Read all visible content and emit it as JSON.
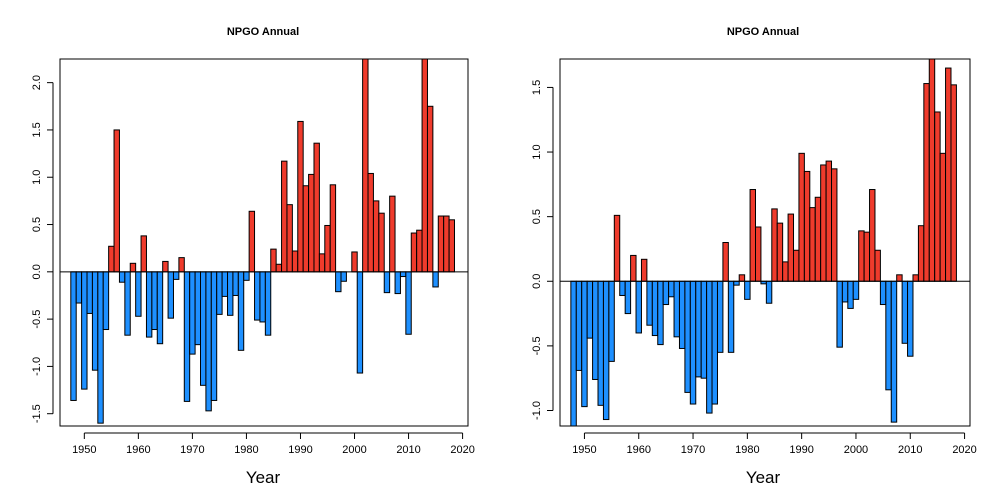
{
  "chart_data": [
    {
      "type": "bar",
      "title": "NPGO Annual",
      "xlabel": "Year",
      "ylabel": "",
      "xlim": [
        1945.5,
        2021
      ],
      "ylim": [
        -1.63,
        2.25
      ],
      "xticks": [
        1950,
        1960,
        1970,
        1980,
        1990,
        2000,
        2010,
        2020
      ],
      "yticks": [
        -1.5,
        -1.0,
        -0.5,
        0.0,
        0.5,
        1.0,
        1.5,
        2.0
      ],
      "ytick_labels": [
        "-1.5",
        "-1.0",
        "-0.5",
        "0.0",
        "0.5",
        "1.0",
        "1.5",
        "2.0"
      ],
      "colors": {
        "positive": "#ef3b2c",
        "negative": "#1e90ff"
      },
      "x": [
        1948,
        1949,
        1950,
        1951,
        1952,
        1953,
        1954,
        1955,
        1956,
        1957,
        1958,
        1959,
        1960,
        1961,
        1962,
        1963,
        1964,
        1965,
        1966,
        1967,
        1968,
        1969,
        1970,
        1971,
        1972,
        1973,
        1974,
        1975,
        1976,
        1977,
        1978,
        1979,
        1980,
        1981,
        1982,
        1983,
        1984,
        1985,
        1986,
        1987,
        1988,
        1989,
        1990,
        1991,
        1992,
        1993,
        1994,
        1995,
        1996,
        1997,
        1998,
        1999,
        2000,
        2001,
        2002,
        2003,
        2004,
        2005,
        2006,
        2007,
        2008,
        2009,
        2010,
        2011,
        2012,
        2013,
        2014,
        2015,
        2016,
        2017,
        2018
      ],
      "values": [
        -1.36,
        -0.33,
        -1.24,
        -0.44,
        -1.04,
        -1.6,
        -0.61,
        0.27,
        1.5,
        -0.11,
        -0.67,
        0.09,
        -0.47,
        0.38,
        -0.69,
        -0.61,
        -0.76,
        0.11,
        -0.49,
        -0.08,
        0.15,
        -1.37,
        -0.87,
        -0.77,
        -1.2,
        -1.47,
        -1.36,
        -0.45,
        -0.26,
        -0.46,
        -0.25,
        -0.83,
        -0.09,
        0.64,
        -0.51,
        -0.53,
        -0.67,
        0.24,
        0.08,
        1.17,
        0.71,
        0.22,
        1.59,
        0.91,
        1.03,
        1.36,
        0.19,
        0.49,
        0.92,
        -0.21,
        -0.1,
        0.0,
        0.21,
        -1.07,
        2.25,
        1.04,
        0.75,
        0.62,
        -0.22,
        0.8,
        -0.23,
        -0.05,
        -0.66,
        0.41,
        0.44,
        2.25,
        1.75,
        -0.16,
        0.59,
        0.59,
        0.55
      ]
    },
    {
      "type": "bar",
      "title": "NPGO Annual",
      "xlabel": "Year",
      "ylabel": "",
      "xlim": [
        1945.5,
        2021
      ],
      "ylim": [
        -1.12,
        1.72
      ],
      "xticks": [
        1950,
        1960,
        1970,
        1980,
        1990,
        2000,
        2010,
        2020
      ],
      "yticks": [
        -1.0,
        -0.5,
        0.0,
        0.5,
        1.0,
        1.5
      ],
      "ytick_labels": [
        "-1.0",
        "-0.5",
        "0.0",
        "0.5",
        "1.0",
        "1.5"
      ],
      "colors": {
        "positive": "#ef3b2c",
        "negative": "#1e90ff"
      },
      "x": [
        1948,
        1949,
        1950,
        1951,
        1952,
        1953,
        1954,
        1955,
        1956,
        1957,
        1958,
        1959,
        1960,
        1961,
        1962,
        1963,
        1964,
        1965,
        1966,
        1967,
        1968,
        1969,
        1970,
        1971,
        1972,
        1973,
        1974,
        1975,
        1976,
        1977,
        1978,
        1979,
        1980,
        1981,
        1982,
        1983,
        1984,
        1985,
        1986,
        1987,
        1988,
        1989,
        1990,
        1991,
        1992,
        1993,
        1994,
        1995,
        1996,
        1997,
        1998,
        1999,
        2000,
        2001,
        2002,
        2003,
        2004,
        2005,
        2006,
        2007,
        2008,
        2009,
        2010,
        2011,
        2012,
        2013,
        2014,
        2015,
        2016,
        2017,
        2018
      ],
      "values": [
        -1.12,
        -0.69,
        -0.97,
        -0.44,
        -0.76,
        -0.96,
        -1.07,
        -0.62,
        0.51,
        -0.11,
        -0.25,
        0.2,
        -0.4,
        0.17,
        -0.34,
        -0.42,
        -0.49,
        -0.18,
        -0.12,
        -0.43,
        -0.52,
        -0.86,
        -0.95,
        -0.74,
        -0.75,
        -1.02,
        -0.95,
        -0.55,
        0.3,
        -0.55,
        -0.03,
        0.05,
        -0.14,
        0.71,
        0.42,
        -0.02,
        -0.17,
        0.56,
        0.45,
        0.15,
        0.52,
        0.24,
        0.99,
        0.85,
        0.57,
        0.65,
        0.9,
        0.93,
        0.87,
        -0.51,
        -0.16,
        -0.21,
        -0.14,
        0.39,
        0.38,
        0.71,
        0.24,
        -0.18,
        -0.84,
        -1.09,
        0.05,
        -0.48,
        -0.58,
        0.05,
        0.43,
        1.53,
        1.72,
        1.31,
        0.99,
        1.65,
        1.52
      ]
    }
  ]
}
